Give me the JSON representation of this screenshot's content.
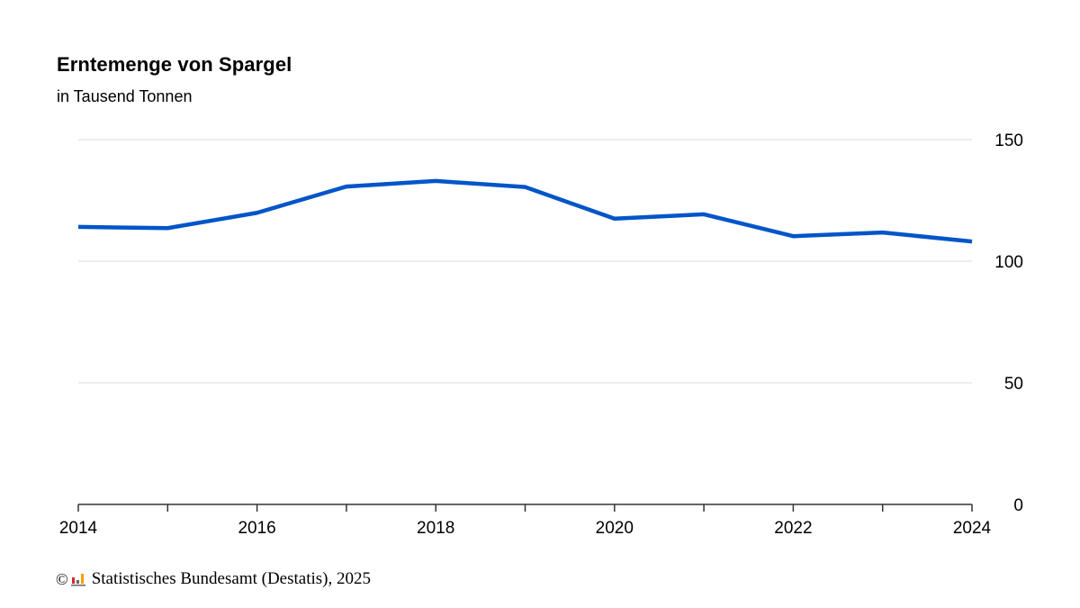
{
  "chart_data": {
    "type": "line",
    "title": "Erntemenge von Spargel",
    "subtitle": "in Tausend Tonnen",
    "xlabel": "",
    "ylabel": "",
    "x": [
      2014,
      2015,
      2016,
      2017,
      2018,
      2019,
      2020,
      2021,
      2022,
      2023,
      2024
    ],
    "x_tick_labels": [
      "2014",
      "2016",
      "2018",
      "2020",
      "2022",
      "2024"
    ],
    "y_tick_labels": [
      "0",
      "50",
      "100",
      "150"
    ],
    "ylim": [
      0,
      150
    ],
    "xlim": [
      2014,
      2024
    ],
    "grid": true,
    "y_axis_side": "right",
    "legend": "none",
    "series": [
      {
        "color": "#0055c8",
        "values": [
          114.1,
          113.6,
          119.9,
          130.7,
          133.0,
          130.5,
          117.5,
          119.3,
          110.3,
          111.8,
          108.1
        ]
      }
    ]
  },
  "footer": {
    "copyright_symbol": "©",
    "source": "Statistisches Bundesamt (Destatis), 2025"
  },
  "colors": {
    "line": "#0055c8",
    "grid": "#dddddd",
    "axis": "#333333",
    "logo_red": "#d42a2a",
    "logo_orange": "#f0a000",
    "logo_gray": "#666666"
  }
}
